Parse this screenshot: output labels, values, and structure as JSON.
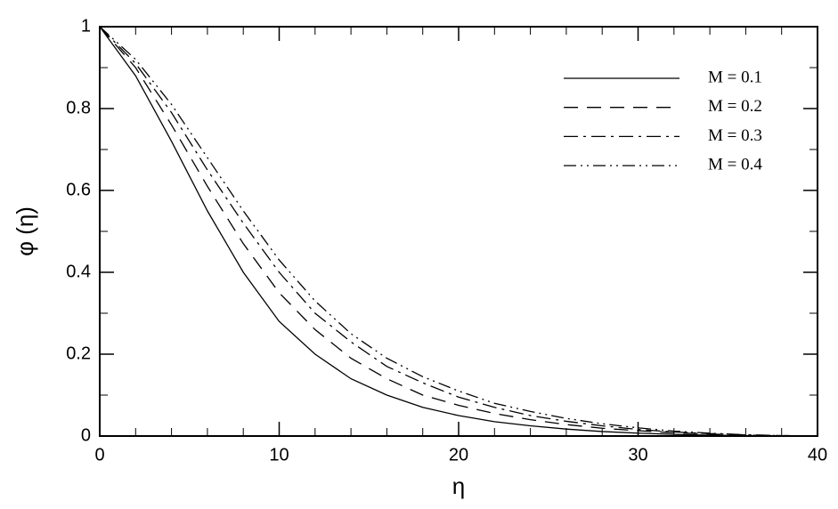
{
  "chart_data": {
    "type": "line",
    "xlabel": "η",
    "ylabel": "φ (η)",
    "x": [
      0,
      2,
      4,
      6,
      8,
      10,
      12,
      14,
      16,
      18,
      20,
      22,
      24,
      26,
      28,
      30,
      32,
      34,
      36,
      38,
      40
    ],
    "series": [
      {
        "name": "M = 0.1",
        "color": "#000000",
        "dash": "solid",
        "values": [
          1,
          0.88,
          0.72,
          0.55,
          0.4,
          0.28,
          0.2,
          0.14,
          0.1,
          0.07,
          0.05,
          0.035,
          0.025,
          0.017,
          0.011,
          0.007,
          0.004,
          0.002,
          0.001,
          0,
          0
        ]
      },
      {
        "name": "M = 0.2",
        "color": "#000000",
        "dash": "dashed",
        "values": [
          1,
          0.9,
          0.76,
          0.61,
          0.47,
          0.35,
          0.26,
          0.19,
          0.14,
          0.1,
          0.075,
          0.055,
          0.04,
          0.028,
          0.019,
          0.013,
          0.008,
          0.005,
          0.002,
          0.001,
          0
        ]
      },
      {
        "name": "M = 0.3",
        "color": "#000000",
        "dash": "dashdot",
        "values": [
          1,
          0.91,
          0.79,
          0.65,
          0.52,
          0.4,
          0.3,
          0.23,
          0.17,
          0.13,
          0.095,
          0.07,
          0.05,
          0.036,
          0.025,
          0.016,
          0.01,
          0.006,
          0.003,
          0.001,
          0
        ]
      },
      {
        "name": "M = 0.4",
        "color": "#000000",
        "dash": "dashdotdot",
        "values": [
          1,
          0.92,
          0.81,
          0.68,
          0.55,
          0.43,
          0.33,
          0.25,
          0.19,
          0.145,
          0.11,
          0.08,
          0.06,
          0.043,
          0.03,
          0.02,
          0.012,
          0.007,
          0.003,
          0.001,
          0
        ]
      }
    ],
    "xlim": [
      0,
      40
    ],
    "xticks": [
      0,
      10,
      20,
      30,
      40
    ],
    "xminorticks": [
      2,
      4,
      6,
      8,
      12,
      14,
      16,
      18,
      22,
      24,
      26,
      28,
      32,
      34,
      36,
      38
    ],
    "ylim": [
      0,
      1
    ],
    "yticks": [
      0,
      0.2,
      0.4,
      0.6,
      0.8,
      1
    ],
    "yminorticks": [
      0.1,
      0.3,
      0.5,
      0.7,
      0.9
    ],
    "legend": "upper right",
    "grid": false
  }
}
